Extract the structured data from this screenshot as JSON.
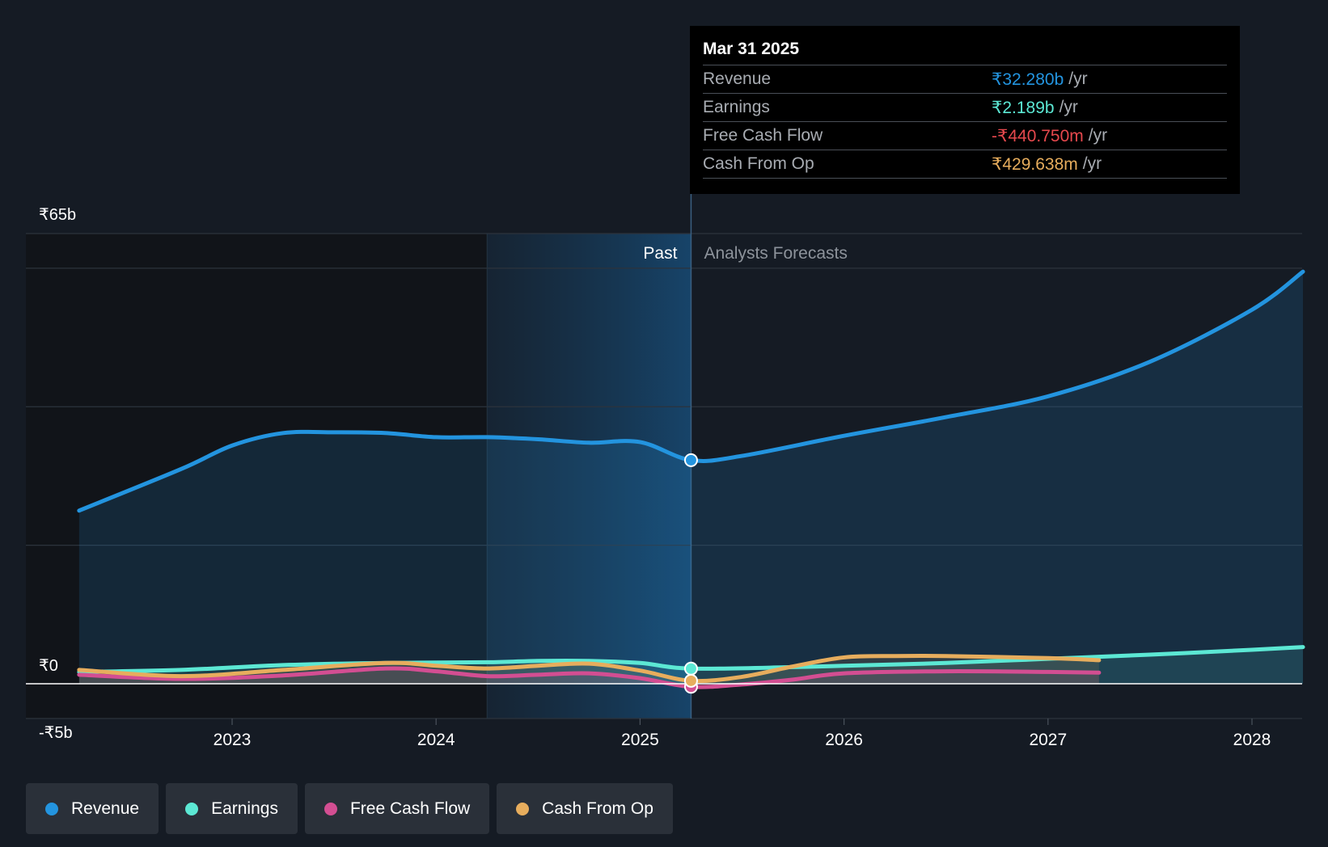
{
  "chart_data": {
    "type": "line",
    "y_tick_labels": [
      "₹65b",
      "₹0",
      "-₹5b"
    ],
    "ylim": [
      -5,
      65
    ],
    "x_tick_labels": [
      "2023",
      "2024",
      "2025",
      "2026",
      "2027",
      "2028"
    ],
    "past_label": "Past",
    "forecast_label": "Analysts Forecasts",
    "series": [
      {
        "name": "Revenue",
        "color": "#2394df",
        "points": [
          [
            2022.25,
            25.0
          ],
          [
            2022.75,
            31.0
          ],
          [
            2023.0,
            34.4
          ],
          [
            2023.25,
            36.2
          ],
          [
            2023.5,
            36.3
          ],
          [
            2023.75,
            36.2
          ],
          [
            2024.0,
            35.6
          ],
          [
            2024.25,
            35.6
          ],
          [
            2024.5,
            35.3
          ],
          [
            2024.75,
            34.8
          ],
          [
            2025.0,
            34.9
          ],
          [
            2025.25,
            32.28
          ],
          [
            2025.5,
            32.9
          ],
          [
            2026.0,
            35.8
          ],
          [
            2026.5,
            38.5
          ],
          [
            2027.0,
            41.5
          ],
          [
            2027.5,
            46.5
          ],
          [
            2028.0,
            54.0
          ],
          [
            2028.25,
            59.5
          ]
        ]
      },
      {
        "name": "Earnings",
        "color": "#5ce8d4",
        "points": [
          [
            2022.25,
            1.7
          ],
          [
            2022.75,
            2.0
          ],
          [
            2023.25,
            2.7
          ],
          [
            2023.75,
            3.0
          ],
          [
            2024.25,
            3.1
          ],
          [
            2024.5,
            3.3
          ],
          [
            2024.75,
            3.3
          ],
          [
            2025.0,
            3.0
          ],
          [
            2025.25,
            2.189
          ],
          [
            2025.75,
            2.4
          ],
          [
            2026.0,
            2.6
          ],
          [
            2026.5,
            3.0
          ],
          [
            2027.0,
            3.6
          ],
          [
            2027.5,
            4.2
          ],
          [
            2028.0,
            4.9
          ],
          [
            2028.25,
            5.3
          ]
        ]
      },
      {
        "name": "Free Cash Flow",
        "color": "#d34e92",
        "points": [
          [
            2022.25,
            1.3
          ],
          [
            2022.75,
            0.7
          ],
          [
            2023.25,
            1.2
          ],
          [
            2023.75,
            2.2
          ],
          [
            2024.0,
            1.8
          ],
          [
            2024.25,
            1.1
          ],
          [
            2024.5,
            1.3
          ],
          [
            2024.75,
            1.5
          ],
          [
            2025.0,
            0.8
          ],
          [
            2025.25,
            -0.44075
          ],
          [
            2025.5,
            -0.1
          ],
          [
            2025.75,
            0.6
          ],
          [
            2026.0,
            1.5
          ],
          [
            2026.5,
            1.8
          ],
          [
            2027.0,
            1.7
          ],
          [
            2027.25,
            1.6
          ]
        ]
      },
      {
        "name": "Cash From Op",
        "color": "#e7ad5d",
        "points": [
          [
            2022.25,
            2.0
          ],
          [
            2022.75,
            1.1
          ],
          [
            2023.25,
            2.0
          ],
          [
            2023.75,
            3.0
          ],
          [
            2024.0,
            2.6
          ],
          [
            2024.25,
            2.2
          ],
          [
            2024.5,
            2.6
          ],
          [
            2024.75,
            2.9
          ],
          [
            2025.0,
            1.9
          ],
          [
            2025.25,
            0.429638
          ],
          [
            2025.5,
            1.0
          ],
          [
            2025.75,
            2.5
          ],
          [
            2026.0,
            3.8
          ],
          [
            2026.25,
            4.0
          ],
          [
            2026.5,
            4.0
          ],
          [
            2027.0,
            3.7
          ],
          [
            2027.25,
            3.4
          ]
        ]
      }
    ]
  },
  "tooltip": {
    "date": "Mar 31 2025",
    "unit": "/yr",
    "rows": [
      {
        "label": "Revenue",
        "value": "₹32.280b",
        "color": "#2394df"
      },
      {
        "label": "Earnings",
        "value": "₹2.189b",
        "color": "#5ce8d4"
      },
      {
        "label": "Free Cash Flow",
        "value": "-₹440.750m",
        "color": "#e5484d"
      },
      {
        "label": "Cash From Op",
        "value": "₹429.638m",
        "color": "#e7ad5d"
      }
    ]
  },
  "legend": [
    {
      "label": "Revenue",
      "color": "#2394df"
    },
    {
      "label": "Earnings",
      "color": "#5ce8d4"
    },
    {
      "label": "Free Cash Flow",
      "color": "#d34e92"
    },
    {
      "label": "Cash From Op",
      "color": "#e7ad5d"
    }
  ]
}
